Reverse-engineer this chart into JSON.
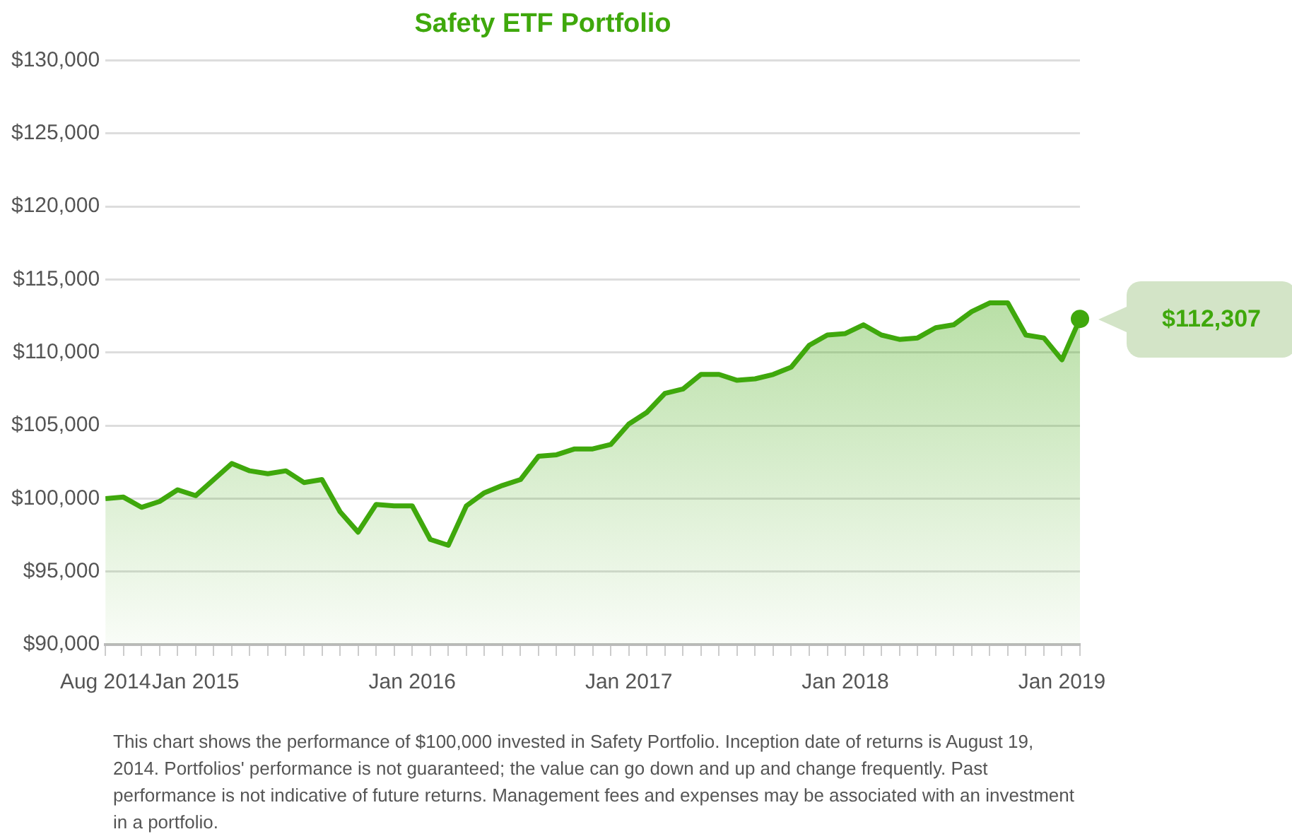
{
  "chart_data": {
    "type": "area",
    "title": "Safety ETF Portfolio",
    "annotations": [
      "$112,307",
      "This chart shows the performance of $100,000 invested in Safety Portfolio. Inception date of returns is August 19, 2014. Portfolios' performance is not guaranteed; the value can go down and up and change frequently. Past performance is not indicative of future returns. Management fees and expenses may be associated with an investment in a portfolio."
    ],
    "x": [
      "2014-08",
      "2014-09",
      "2014-10",
      "2014-11",
      "2014-12",
      "2015-01",
      "2015-02",
      "2015-03",
      "2015-04",
      "2015-05",
      "2015-06",
      "2015-07",
      "2015-08",
      "2015-09",
      "2015-10",
      "2015-11",
      "2015-12",
      "2016-01",
      "2016-02",
      "2016-03",
      "2016-04",
      "2016-05",
      "2016-06",
      "2016-07",
      "2016-08",
      "2016-09",
      "2016-10",
      "2016-11",
      "2016-12",
      "2017-01",
      "2017-02",
      "2017-03",
      "2017-04",
      "2017-05",
      "2017-06",
      "2017-07",
      "2017-08",
      "2017-09",
      "2017-10",
      "2017-11",
      "2017-12",
      "2018-01",
      "2018-02",
      "2018-03",
      "2018-04",
      "2018-05",
      "2018-06",
      "2018-07",
      "2018-08",
      "2018-09",
      "2018-10",
      "2018-11",
      "2018-12",
      "2019-01",
      "2019-02"
    ],
    "series": [
      {
        "color": "#3fa80c",
        "values": [
          100000,
          100100,
          99400,
          99800,
          100600,
          100200,
          101300,
          102400,
          101900,
          101700,
          101900,
          101100,
          101300,
          99100,
          97700,
          99600,
          99500,
          99500,
          97200,
          96800,
          99500,
          100400,
          100900,
          101300,
          102900,
          103000,
          103400,
          103400,
          103700,
          105100,
          105900,
          107200,
          107500,
          108500,
          108500,
          108100,
          108200,
          108500,
          109000,
          110500,
          111200,
          111300,
          111900,
          111200,
          110900,
          111000,
          111700,
          111900,
          112800,
          113400,
          113400,
          111200,
          111000,
          109500,
          112307
        ]
      }
    ],
    "xlim": [
      "2014-08",
      "2019-02"
    ],
    "xticks": [
      {
        "value": "2014-08",
        "label": "Aug 2014"
      },
      {
        "value": "2014-09",
        "label": null
      },
      {
        "value": "2014-10",
        "label": null
      },
      {
        "value": "2014-11",
        "label": null
      },
      {
        "value": "2014-12",
        "label": null
      },
      {
        "value": "2015-01",
        "label": "Jan 2015"
      },
      {
        "value": "2015-02",
        "label": null
      },
      {
        "value": "2015-03",
        "label": null
      },
      {
        "value": "2015-04",
        "label": null
      },
      {
        "value": "2015-05",
        "label": null
      },
      {
        "value": "2015-06",
        "label": null
      },
      {
        "value": "2015-07",
        "label": null
      },
      {
        "value": "2015-08",
        "label": null
      },
      {
        "value": "2015-09",
        "label": null
      },
      {
        "value": "2015-10",
        "label": null
      },
      {
        "value": "2015-11",
        "label": null
      },
      {
        "value": "2015-12",
        "label": null
      },
      {
        "value": "2016-01",
        "label": "Jan 2016"
      },
      {
        "value": "2016-02",
        "label": null
      },
      {
        "value": "2016-03",
        "label": null
      },
      {
        "value": "2016-04",
        "label": null
      },
      {
        "value": "2016-05",
        "label": null
      },
      {
        "value": "2016-06",
        "label": null
      },
      {
        "value": "2016-07",
        "label": null
      },
      {
        "value": "2016-08",
        "label": null
      },
      {
        "value": "2016-09",
        "label": null
      },
      {
        "value": "2016-10",
        "label": null
      },
      {
        "value": "2016-11",
        "label": null
      },
      {
        "value": "2016-12",
        "label": null
      },
      {
        "value": "2017-01",
        "label": "Jan 2017"
      },
      {
        "value": "2017-02",
        "label": null
      },
      {
        "value": "2017-03",
        "label": null
      },
      {
        "value": "2017-04",
        "label": null
      },
      {
        "value": "2017-05",
        "label": null
      },
      {
        "value": "2017-06",
        "label": null
      },
      {
        "value": "2017-07",
        "label": null
      },
      {
        "value": "2017-08",
        "label": null
      },
      {
        "value": "2017-09",
        "label": null
      },
      {
        "value": "2017-10",
        "label": null
      },
      {
        "value": "2017-11",
        "label": null
      },
      {
        "value": "2017-12",
        "label": null
      },
      {
        "value": "2018-01",
        "label": "Jan 2018"
      },
      {
        "value": "2018-02",
        "label": null
      },
      {
        "value": "2018-03",
        "label": null
      },
      {
        "value": "2018-04",
        "label": null
      },
      {
        "value": "2018-05",
        "label": null
      },
      {
        "value": "2018-06",
        "label": null
      },
      {
        "value": "2018-07",
        "label": null
      },
      {
        "value": "2018-08",
        "label": null
      },
      {
        "value": "2018-09",
        "label": null
      },
      {
        "value": "2018-10",
        "label": null
      },
      {
        "value": "2018-11",
        "label": null
      },
      {
        "value": "2018-12",
        "label": null
      },
      {
        "value": "2019-01",
        "label": "Jan 2019"
      },
      {
        "value": "2019-02",
        "label": null
      }
    ],
    "ylim": [
      90000,
      130000
    ],
    "yticks": [
      {
        "value": 90000,
        "label": "$90,000"
      },
      {
        "value": 95000,
        "label": "$95,000"
      },
      {
        "value": 100000,
        "label": "$100,000"
      },
      {
        "value": 105000,
        "label": "$105,000"
      },
      {
        "value": 110000,
        "label": "$110,000"
      },
      {
        "value": 115000,
        "label": "$115,000"
      },
      {
        "value": 120000,
        "label": "$120,000"
      },
      {
        "value": 125000,
        "label": "$125,000"
      },
      {
        "value": 130000,
        "label": "$130,000"
      }
    ],
    "grid": "y",
    "marker": "none",
    "line_style": "solid",
    "legend": false
  }
}
